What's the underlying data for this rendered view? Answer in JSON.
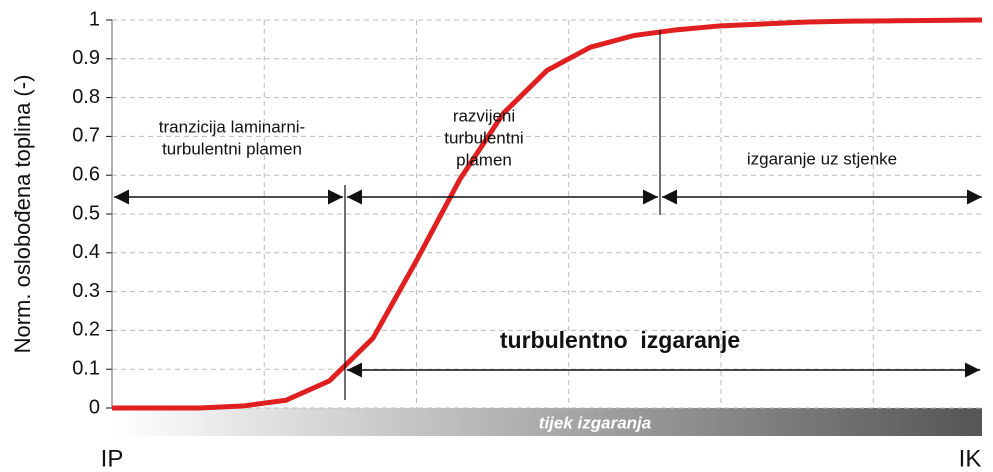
{
  "chart_data": {
    "type": "line",
    "y_label": "Norm. oslobođena toplina (-)",
    "x_start_label": "IP",
    "x_end_label": "IK",
    "x": [
      0,
      5,
      10,
      15,
      20,
      25,
      30,
      35,
      40,
      45,
      50,
      55,
      60,
      65,
      70,
      75,
      80,
      85,
      90,
      95,
      100
    ],
    "series": [
      {
        "color": "#e02020",
        "values": [
          0,
          0,
          0,
          0.005,
          0.02,
          0.07,
          0.18,
          0.38,
          0.59,
          0.76,
          0.87,
          0.93,
          0.96,
          0.975,
          0.985,
          0.99,
          0.995,
          0.997,
          0.998,
          0.999,
          1
        ]
      }
    ],
    "xlim": [
      0,
      100
    ],
    "xticks": [
      17.5,
      35,
      52.5,
      70,
      87.5
    ],
    "ylim": [
      0,
      1
    ],
    "yticks": [
      0,
      0.1,
      0.2,
      0.3,
      0.4,
      0.5,
      0.6,
      0.7,
      0.8,
      0.9,
      1
    ],
    "grid": true,
    "annotations": {
      "phase1": [
        "tranzicija laminarni-",
        "turbulentni plamen"
      ],
      "phase2": [
        "razvijeni",
        "turbulentni",
        "plamen"
      ],
      "phase3": "izgaranje uz stjenke",
      "turbulent": "turbulentno  izgaranje",
      "progress": "tijek izgaranja"
    }
  }
}
